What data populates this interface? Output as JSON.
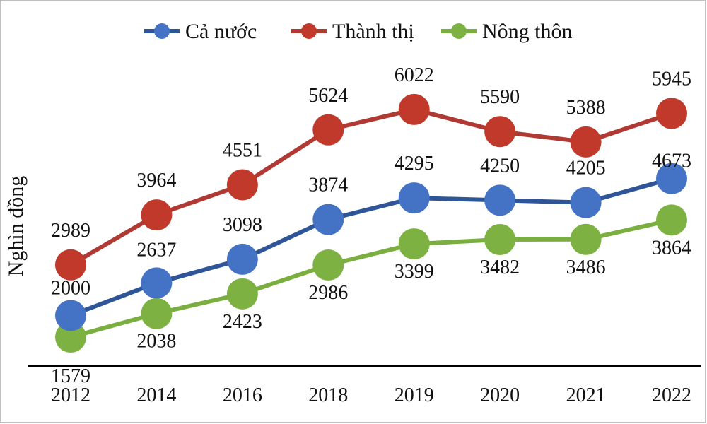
{
  "chart_data": {
    "type": "line",
    "categories": [
      "2012",
      "2014",
      "2016",
      "2018",
      "2019",
      "2020",
      "2021",
      "2022"
    ],
    "ylabel": "Nghìn đồng",
    "xlabel": "",
    "ylim": [
      1000,
      7000
    ],
    "grid": false,
    "legend_position": "top",
    "series": [
      {
        "name": "Cả nước",
        "color": "#4472C4",
        "line_color": "#2E5597",
        "values": [
          2000,
          2637,
          3098,
          3874,
          4295,
          4250,
          4205,
          4673
        ]
      },
      {
        "name": "Thành thị",
        "color": "#C0392B",
        "line_color": "#B03A33",
        "values": [
          2989,
          3964,
          4551,
          5624,
          6022,
          5590,
          5388,
          5945
        ]
      },
      {
        "name": "Nông thôn",
        "color": "#7DB242",
        "line_color": "#7AAE3F",
        "values": [
          1579,
          2038,
          2423,
          2986,
          3399,
          3482,
          3486,
          3864
        ]
      }
    ]
  }
}
